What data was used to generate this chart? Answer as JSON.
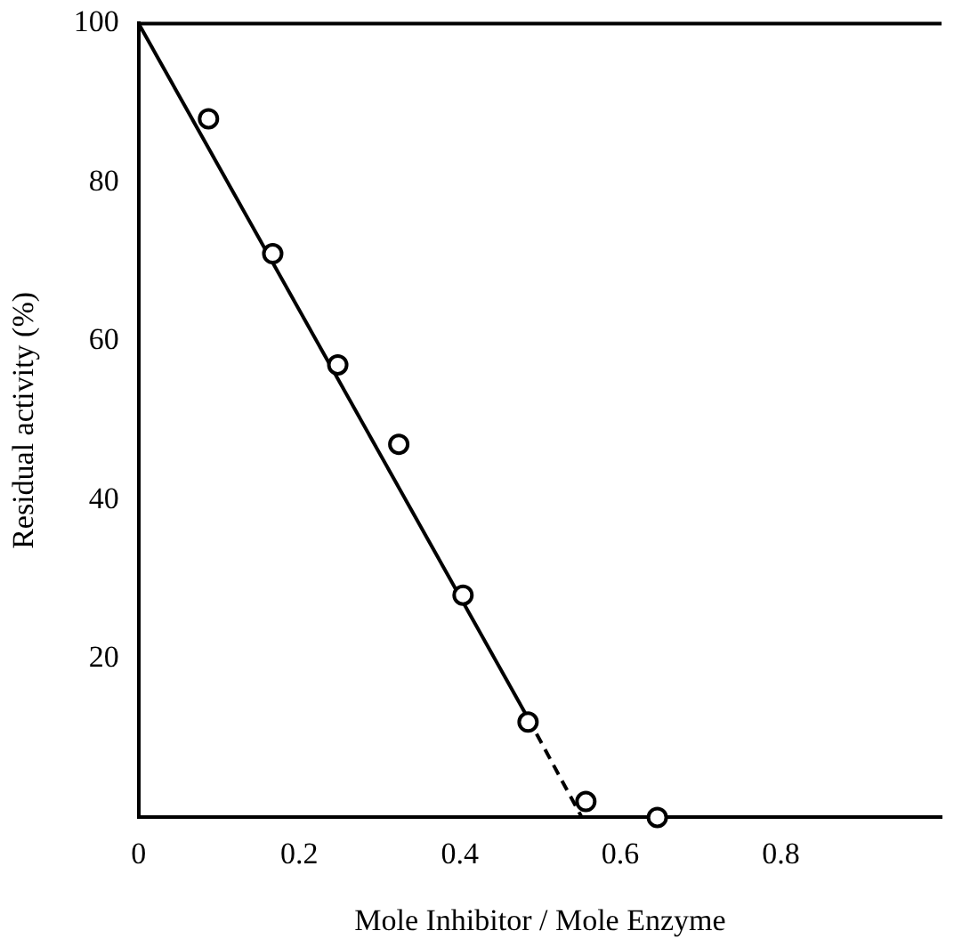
{
  "chart_data": {
    "type": "scatter",
    "xlabel": "Mole Inhibitor / Mole Enzyme",
    "ylabel": "Residual activity (%)",
    "xlim": [
      0,
      1.0
    ],
    "xticks": [
      0,
      0.2,
      0.4,
      0.6,
      0.8
    ],
    "ylim": [
      0,
      100
    ],
    "yticks": [
      20,
      40,
      60,
      80,
      100
    ],
    "grid": false,
    "legend": false,
    "marker": "circle",
    "series": [
      {
        "color": "#000000",
        "x": [
          0.087,
          0.167,
          0.248,
          0.324,
          0.404,
          0.485,
          0.557,
          0.646
        ],
        "values": [
          88,
          71,
          57,
          47,
          28,
          12,
          2,
          0
        ]
      },
      {
        "type": "line",
        "color": "#000000",
        "line_style": "solid",
        "marker": "none",
        "x": [
          0,
          0.485
        ],
        "values": [
          100,
          12.5
        ]
      },
      {
        "type": "line",
        "color": "#000000",
        "line_style": "dashed",
        "marker": "none",
        "x": [
          0.485,
          0.552
        ],
        "values": [
          12.5,
          0
        ]
      }
    ]
  }
}
